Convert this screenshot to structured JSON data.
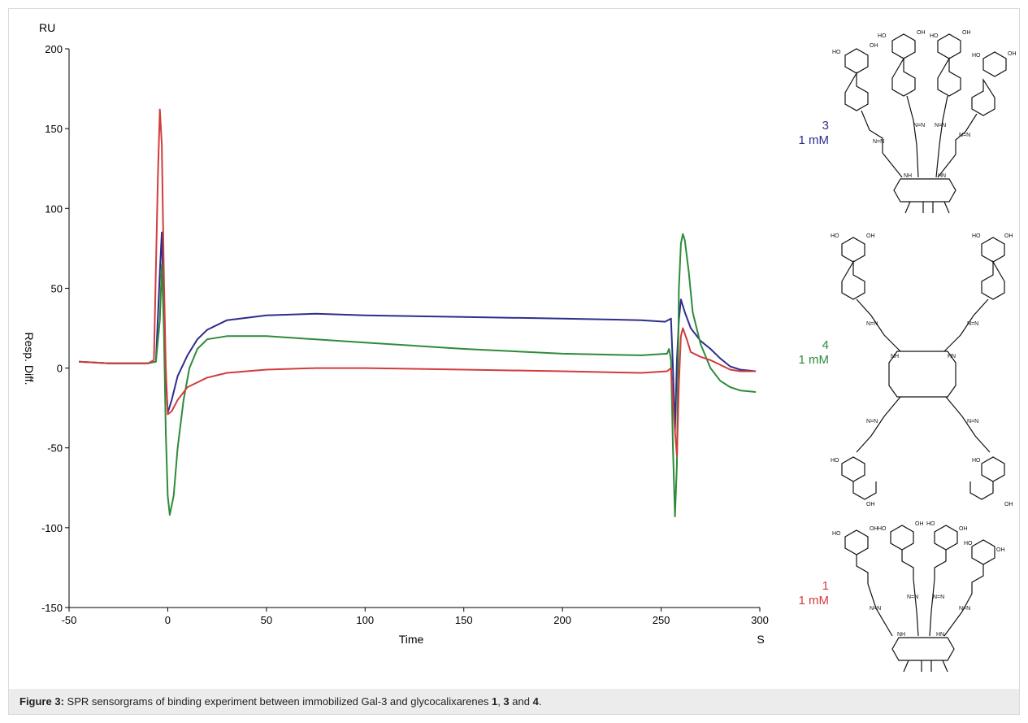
{
  "chart_data": {
    "type": "line",
    "ylabel_unit": "RU",
    "ylabel": "Resp. Diff.",
    "xlabel": "Time",
    "xlabel_unit": "S",
    "xlim": [
      -50,
      300
    ],
    "ylim": [
      -150,
      200
    ],
    "x_ticks": [
      -50,
      0,
      50,
      100,
      150,
      200,
      250,
      300
    ],
    "y_ticks": [
      200,
      150,
      100,
      50,
      0,
      -50,
      -100,
      -150
    ],
    "grid": false,
    "series": [
      {
        "name": "3",
        "color": "#2e2e8c",
        "points": [
          [
            -45,
            4
          ],
          [
            -30,
            3
          ],
          [
            -10,
            3
          ],
          [
            -6,
            4
          ],
          [
            -4,
            60
          ],
          [
            -3,
            85
          ],
          [
            -2,
            30
          ],
          [
            -1,
            -5
          ],
          [
            0,
            -28
          ],
          [
            2,
            -20
          ],
          [
            5,
            -5
          ],
          [
            10,
            8
          ],
          [
            15,
            18
          ],
          [
            20,
            24
          ],
          [
            30,
            30
          ],
          [
            50,
            33
          ],
          [
            75,
            34
          ],
          [
            100,
            33
          ],
          [
            150,
            32
          ],
          [
            200,
            31
          ],
          [
            240,
            30
          ],
          [
            252,
            29
          ],
          [
            255,
            31
          ],
          [
            256,
            0
          ],
          [
            257,
            -40
          ],
          [
            258,
            5
          ],
          [
            259,
            30
          ],
          [
            260,
            43
          ],
          [
            262,
            35
          ],
          [
            265,
            25
          ],
          [
            270,
            17
          ],
          [
            275,
            12
          ],
          [
            280,
            6
          ],
          [
            285,
            1
          ],
          [
            290,
            -1
          ],
          [
            298,
            -2
          ]
        ]
      },
      {
        "name": "4",
        "color": "#2e8b3a",
        "points": [
          [
            -45,
            4
          ],
          [
            -30,
            3
          ],
          [
            -10,
            3
          ],
          [
            -6,
            4
          ],
          [
            -4,
            30
          ],
          [
            -3,
            65
          ],
          [
            -2,
            25
          ],
          [
            -1,
            -40
          ],
          [
            0,
            -80
          ],
          [
            1,
            -92
          ],
          [
            3,
            -80
          ],
          [
            5,
            -50
          ],
          [
            8,
            -20
          ],
          [
            11,
            0
          ],
          [
            15,
            12
          ],
          [
            20,
            18
          ],
          [
            30,
            20
          ],
          [
            50,
            20
          ],
          [
            100,
            16
          ],
          [
            150,
            12
          ],
          [
            200,
            9
          ],
          [
            240,
            8
          ],
          [
            253,
            9
          ],
          [
            254,
            12
          ],
          [
            255,
            5
          ],
          [
            256,
            -50
          ],
          [
            257,
            -93
          ],
          [
            258,
            -60
          ],
          [
            259,
            50
          ],
          [
            260,
            78
          ],
          [
            261,
            84
          ],
          [
            262,
            80
          ],
          [
            264,
            60
          ],
          [
            266,
            35
          ],
          [
            270,
            15
          ],
          [
            275,
            0
          ],
          [
            280,
            -8
          ],
          [
            285,
            -12
          ],
          [
            290,
            -14
          ],
          [
            298,
            -15
          ]
        ]
      },
      {
        "name": "1",
        "color": "#d23c3c",
        "points": [
          [
            -45,
            4
          ],
          [
            -30,
            3
          ],
          [
            -10,
            3
          ],
          [
            -7,
            5
          ],
          [
            -5,
            120
          ],
          [
            -4,
            162
          ],
          [
            -3,
            140
          ],
          [
            -2,
            60
          ],
          [
            -1,
            0
          ],
          [
            0,
            -29
          ],
          [
            2,
            -27
          ],
          [
            5,
            -20
          ],
          [
            10,
            -12
          ],
          [
            20,
            -6
          ],
          [
            30,
            -3
          ],
          [
            50,
            -1
          ],
          [
            75,
            0
          ],
          [
            100,
            0
          ],
          [
            150,
            -1
          ],
          [
            200,
            -2
          ],
          [
            240,
            -3
          ],
          [
            253,
            -2
          ],
          [
            255,
            0
          ],
          [
            256,
            -20
          ],
          [
            257,
            -40
          ],
          [
            258,
            -55
          ],
          [
            259,
            -10
          ],
          [
            260,
            20
          ],
          [
            261,
            25
          ],
          [
            263,
            18
          ],
          [
            265,
            10
          ],
          [
            270,
            7
          ],
          [
            275,
            5
          ],
          [
            280,
            2
          ],
          [
            285,
            -1
          ],
          [
            290,
            -2
          ],
          [
            298,
            -2
          ]
        ]
      }
    ]
  },
  "labels": {
    "s3_name": "3",
    "s3_conc": "1 mM",
    "s4_name": "4",
    "s4_conc": "1 mM",
    "s1_name": "1",
    "s1_conc": "1 mM"
  },
  "caption": {
    "prefix": "Figure 3:",
    "text": " SPR sensorgrams of binding experiment between immobilized Gal-3 and glycocalixarenes ",
    "c1": "1",
    "sep1": ", ",
    "c2": "3",
    "sep2": " and ",
    "c3": "4",
    "end": "."
  }
}
